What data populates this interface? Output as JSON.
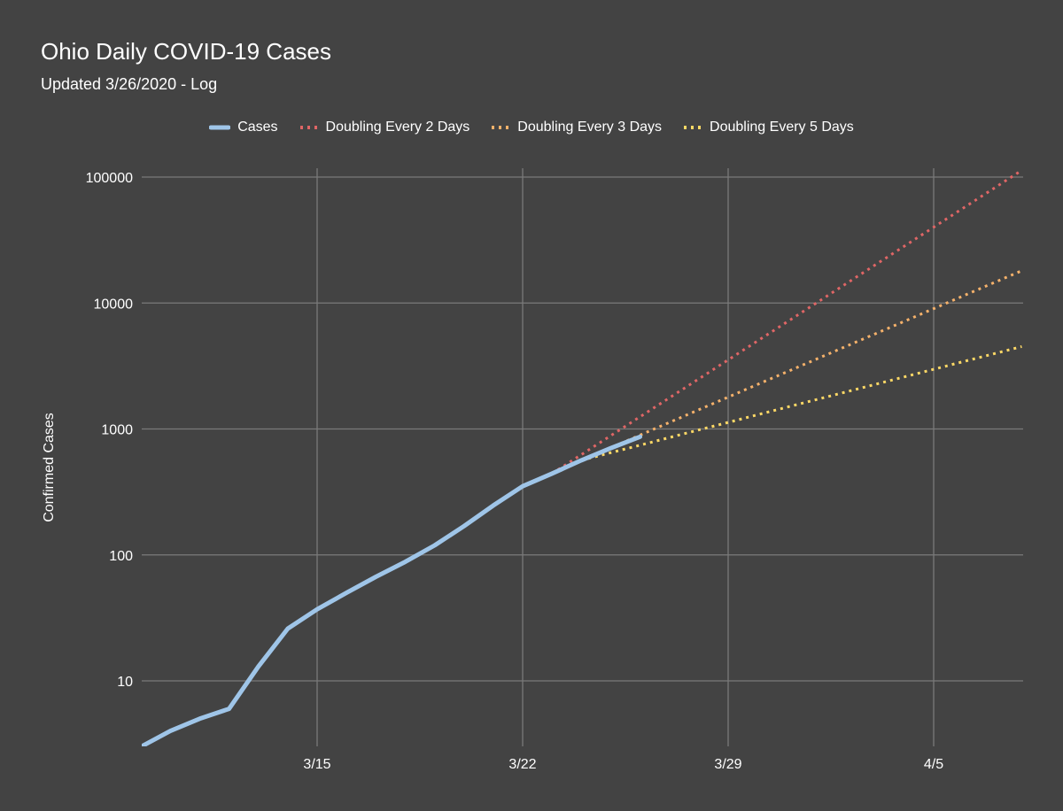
{
  "chart_data": {
    "type": "line",
    "title": "Ohio Daily COVID-19 Cases",
    "subtitle": "Updated 3/26/2020 - Log",
    "xlabel": "",
    "ylabel": "Confirmed Cases",
    "y_scale": "log",
    "ylim": [
      3,
      110000
    ],
    "grid": true,
    "legend_position": "top-center",
    "background": "#434343",
    "x_tick_labels": [
      "3/15",
      "3/22",
      "3/29",
      "4/5"
    ],
    "x_tick_dates": [
      "3/15",
      "3/22",
      "3/29",
      "4/5"
    ],
    "x_range": [
      "3/9",
      "4/7"
    ],
    "y_tick_labels": [
      "10",
      "100",
      "1000",
      "10000",
      "100000"
    ],
    "y_tick_values": [
      10,
      100,
      1000,
      10000,
      100000
    ],
    "series": [
      {
        "name": "Cases",
        "color": "#9fc5e8",
        "style": "solid",
        "points": [
          {
            "x": "3/9",
            "y": 3
          },
          {
            "x": "3/10",
            "y": 4
          },
          {
            "x": "3/11",
            "y": 5
          },
          {
            "x": "3/12",
            "y": 6
          },
          {
            "x": "3/13",
            "y": 13
          },
          {
            "x": "3/14",
            "y": 26
          },
          {
            "x": "3/15",
            "y": 37
          },
          {
            "x": "3/16",
            "y": 50
          },
          {
            "x": "3/17",
            "y": 67
          },
          {
            "x": "3/18",
            "y": 88
          },
          {
            "x": "3/19",
            "y": 119
          },
          {
            "x": "3/20",
            "y": 169
          },
          {
            "x": "3/21",
            "y": 247
          },
          {
            "x": "3/22",
            "y": 351
          },
          {
            "x": "3/23",
            "y": 442
          },
          {
            "x": "3/24",
            "y": 564
          },
          {
            "x": "3/25",
            "y": 704
          },
          {
            "x": "3/26",
            "y": 867
          }
        ]
      },
      {
        "name": "Doubling Every 2 Days",
        "color": "#e06666",
        "style": "dotted",
        "points": [
          {
            "x": "3/23",
            "y": 442
          },
          {
            "x": "3/24",
            "y": 625
          },
          {
            "x": "3/25",
            "y": 884
          },
          {
            "x": "3/26",
            "y": 1250
          },
          {
            "x": "3/27",
            "y": 1768
          },
          {
            "x": "3/28",
            "y": 2500
          },
          {
            "x": "3/29",
            "y": 3536
          },
          {
            "x": "3/30",
            "y": 5000
          },
          {
            "x": "3/31",
            "y": 7071
          },
          {
            "x": "4/1",
            "y": 10000
          },
          {
            "x": "4/2",
            "y": 14142
          },
          {
            "x": "4/3",
            "y": 20000
          },
          {
            "x": "4/4",
            "y": 28284
          },
          {
            "x": "4/5",
            "y": 40000
          },
          {
            "x": "4/6",
            "y": 56569
          },
          {
            "x": "4/7",
            "y": 80000
          },
          {
            "x": "4/8",
            "y": 113137
          }
        ]
      },
      {
        "name": "Doubling Every 3 Days",
        "color": "#f6b26b",
        "style": "dotted",
        "points": [
          {
            "x": "3/24",
            "y": 564
          },
          {
            "x": "3/25",
            "y": 710
          },
          {
            "x": "3/26",
            "y": 895
          },
          {
            "x": "3/27",
            "y": 1128
          },
          {
            "x": "3/28",
            "y": 1421
          },
          {
            "x": "3/29",
            "y": 1790
          },
          {
            "x": "3/30",
            "y": 2256
          },
          {
            "x": "3/31",
            "y": 2842
          },
          {
            "x": "4/1",
            "y": 3581
          },
          {
            "x": "4/2",
            "y": 4512
          },
          {
            "x": "4/3",
            "y": 5684
          },
          {
            "x": "4/4",
            "y": 7162
          },
          {
            "x": "4/5",
            "y": 9024
          },
          {
            "x": "4/6",
            "y": 11369
          },
          {
            "x": "4/7",
            "y": 14324
          },
          {
            "x": "4/8",
            "y": 18048
          }
        ]
      },
      {
        "name": "Doubling Every 5 Days",
        "color": "#ffd966",
        "style": "dotted",
        "points": [
          {
            "x": "3/24",
            "y": 564
          },
          {
            "x": "3/25",
            "y": 648
          },
          {
            "x": "3/26",
            "y": 744
          },
          {
            "x": "3/27",
            "y": 855
          },
          {
            "x": "3/28",
            "y": 982
          },
          {
            "x": "3/29",
            "y": 1128
          },
          {
            "x": "3/30",
            "y": 1296
          },
          {
            "x": "3/31",
            "y": 1489
          },
          {
            "x": "4/1",
            "y": 1710
          },
          {
            "x": "4/2",
            "y": 1964
          },
          {
            "x": "4/3",
            "y": 2256
          },
          {
            "x": "4/4",
            "y": 2592
          },
          {
            "x": "4/5",
            "y": 2977
          },
          {
            "x": "4/6",
            "y": 3420
          },
          {
            "x": "4/7",
            "y": 3928
          },
          {
            "x": "4/8",
            "y": 4512
          }
        ]
      }
    ]
  }
}
